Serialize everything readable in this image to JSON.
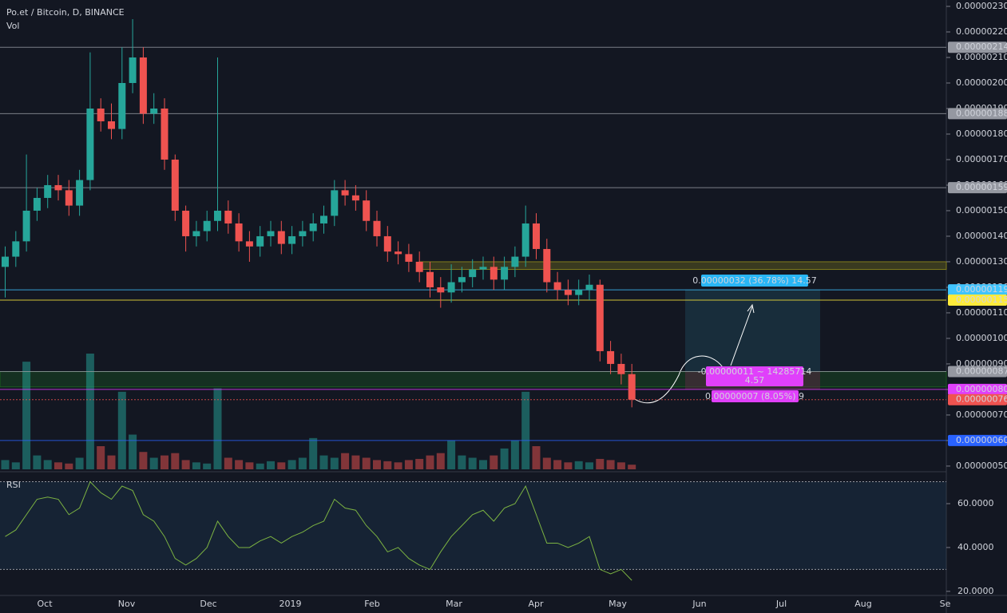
{
  "chart_data": [
    {
      "type": "candlestick",
      "title": "Po.et / Bitcoin, D, BINANCE",
      "up_color": "#26a69a",
      "down_color": "#ef5350",
      "open": [
        1.28e-06,
        1.32e-06,
        1.38e-06,
        1.5e-06,
        1.55e-06,
        1.6e-06,
        1.58e-06,
        1.52e-06,
        1.62e-06,
        1.9e-06,
        1.85e-06,
        1.82e-06,
        2e-06,
        2.1e-06,
        1.88e-06,
        1.9e-06,
        1.7e-06,
        1.5e-06,
        1.4e-06,
        1.42e-06,
        1.46e-06,
        1.5e-06,
        1.45e-06,
        1.38e-06,
        1.36e-06,
        1.4e-06,
        1.42e-06,
        1.37e-06,
        1.4e-06,
        1.42e-06,
        1.45e-06,
        1.48e-06,
        1.58e-06,
        1.56e-06,
        1.54e-06,
        1.46e-06,
        1.4e-06,
        1.34e-06,
        1.33e-06,
        1.3e-06,
        1.26e-06,
        1.2e-06,
        1.18e-06,
        1.22e-06,
        1.24e-06,
        1.27e-06,
        1.28e-06,
        1.23e-06,
        1.28e-06,
        1.32e-06,
        1.45e-06,
        1.35e-06,
        1.22e-06,
        1.19e-06,
        1.17e-06,
        1.19e-06,
        1.21e-06,
        9.5e-07,
        9e-07,
        8.6e-07
      ],
      "high": [
        1.36e-06,
        1.42e-06,
        1.72e-06,
        1.59e-06,
        1.64e-06,
        1.64e-06,
        1.62e-06,
        1.66e-06,
        2.12e-06,
        1.94e-06,
        1.92e-06,
        2.14e-06,
        2.25e-06,
        2.14e-06,
        1.96e-06,
        1.94e-06,
        1.72e-06,
        1.52e-06,
        1.46e-06,
        1.5e-06,
        2.1e-06,
        1.54e-06,
        1.49e-06,
        1.42e-06,
        1.44e-06,
        1.46e-06,
        1.46e-06,
        1.44e-06,
        1.46e-06,
        1.49e-06,
        1.52e-06,
        1.62e-06,
        1.62e-06,
        1.6e-06,
        1.58e-06,
        1.5e-06,
        1.44e-06,
        1.38e-06,
        1.37e-06,
        1.34e-06,
        1.3e-06,
        1.24e-06,
        1.29e-06,
        1.28e-06,
        1.31e-06,
        1.32e-06,
        1.32e-06,
        1.32e-06,
        1.36e-06,
        1.52e-06,
        1.49e-06,
        1.39e-06,
        1.26e-06,
        1.23e-06,
        1.23e-06,
        1.25e-06,
        1.23e-06,
        9.9e-07,
        9.4e-07,
        9e-07
      ],
      "low": [
        1.16e-06,
        1.28e-06,
        1.34e-06,
        1.46e-06,
        1.51e-06,
        1.54e-06,
        1.48e-06,
        1.48e-06,
        1.58e-06,
        1.81e-06,
        1.78e-06,
        1.78e-06,
        1.96e-06,
        1.84e-06,
        1.84e-06,
        1.66e-06,
        1.46e-06,
        1.34e-06,
        1.36e-06,
        1.38e-06,
        1.42e-06,
        1.41e-06,
        1.34e-06,
        1.3e-06,
        1.32e-06,
        1.36e-06,
        1.33e-06,
        1.33e-06,
        1.36e-06,
        1.38e-06,
        1.41e-06,
        1.44e-06,
        1.52e-06,
        1.5e-06,
        1.42e-06,
        1.36e-06,
        1.3e-06,
        1.29e-06,
        1.26e-06,
        1.22e-06,
        1.16e-06,
        1.12e-06,
        1.14e-06,
        1.18e-06,
        1.2e-06,
        1.23e-06,
        1.19e-06,
        1.19e-06,
        1.24e-06,
        1.28e-06,
        1.31e-06,
        1.18e-06,
        1.15e-06,
        1.13e-06,
        1.13e-06,
        1.15e-06,
        9.1e-07,
        8.6e-07,
        8.2e-07,
        7.3e-07
      ],
      "close": [
        1.32e-06,
        1.38e-06,
        1.5e-06,
        1.55e-06,
        1.6e-06,
        1.58e-06,
        1.52e-06,
        1.62e-06,
        1.9e-06,
        1.85e-06,
        1.82e-06,
        2e-06,
        2.1e-06,
        1.88e-06,
        1.9e-06,
        1.7e-06,
        1.5e-06,
        1.4e-06,
        1.42e-06,
        1.46e-06,
        1.5e-06,
        1.45e-06,
        1.38e-06,
        1.36e-06,
        1.4e-06,
        1.42e-06,
        1.37e-06,
        1.4e-06,
        1.42e-06,
        1.45e-06,
        1.48e-06,
        1.58e-06,
        1.56e-06,
        1.54e-06,
        1.46e-06,
        1.4e-06,
        1.34e-06,
        1.33e-06,
        1.3e-06,
        1.26e-06,
        1.2e-06,
        1.18e-06,
        1.22e-06,
        1.24e-06,
        1.27e-06,
        1.28e-06,
        1.23e-06,
        1.28e-06,
        1.32e-06,
        1.45e-06,
        1.35e-06,
        1.22e-06,
        1.19e-06,
        1.17e-06,
        1.19e-06,
        1.21e-06,
        9.5e-07,
        9e-07,
        8.6e-07,
        7.6e-07
      ],
      "ylim": [
        4.81e-07,
        2.325e-06
      ],
      "yticks": [
        {
          "value": 5e-07,
          "label": "0.00000050"
        },
        {
          "value": 6e-07,
          "label": "0.00000060"
        },
        {
          "value": 7e-07,
          "label": "0.00000070"
        },
        {
          "value": 8e-07,
          "label": "0.00000080"
        },
        {
          "value": 9e-07,
          "label": "0.00000090"
        },
        {
          "value": 1e-06,
          "label": "0.00000100"
        },
        {
          "value": 1.1e-06,
          "label": "0.00000110"
        },
        {
          "value": 1.2e-06,
          "label": "0.00000120"
        },
        {
          "value": 1.3e-06,
          "label": "0.00000130"
        },
        {
          "value": 1.4e-06,
          "label": "0.00000140"
        },
        {
          "value": 1.5e-06,
          "label": "0.00000150"
        },
        {
          "value": 1.6e-06,
          "label": "0.00000160"
        },
        {
          "value": 1.7e-06,
          "label": "0.00000170"
        },
        {
          "value": 1.8e-06,
          "label": "0.00000180"
        },
        {
          "value": 1.9e-06,
          "label": "0.00000190"
        },
        {
          "value": 2e-06,
          "label": "0.00000200"
        },
        {
          "value": 2.1e-06,
          "label": "0.00000210"
        },
        {
          "value": 2.2e-06,
          "label": "0.00000220"
        },
        {
          "value": 2.3e-06,
          "label": "0.00000230"
        }
      ],
      "price_lines": [
        {
          "value": 2.14e-06,
          "label": "0.00000214",
          "color": "#9598a1",
          "text_color": "#131722",
          "dash": false
        },
        {
          "value": 1.88e-06,
          "label": "0.00000188",
          "color": "#9598a1",
          "text_color": "#131722",
          "dash": false
        },
        {
          "value": 1.59e-06,
          "label": "0.00000159",
          "color": "#9598a1",
          "text_color": "#131722",
          "dash": false
        },
        {
          "value": 1.19e-06,
          "label": "0.00000119",
          "color": "#40c4ff",
          "text_color": "#131722",
          "dash": false
        },
        {
          "value": 1.15e-06,
          "label": "0.00000115",
          "color": "#ffeb3b",
          "text_color": "#131722",
          "dash": false
        },
        {
          "value": 8.7e-07,
          "label": "0.00000087",
          "color": "#9598a1",
          "text_color": "#131722",
          "dash": false
        },
        {
          "value": 8e-07,
          "label": "0.00000080",
          "color": "#e040fb",
          "text_color": "#ffffff",
          "dash": false
        },
        {
          "value": 7.6e-07,
          "label": "0.00000076",
          "color": "#ef5350",
          "text_color": "#ffffff",
          "dash": true
        },
        {
          "value": 6e-07,
          "label": "0.00000060",
          "color": "#2962ff",
          "text_color": "#ffffff",
          "dash": false
        }
      ],
      "zones": [
        {
          "from": 1.27e-06,
          "to": 1.3e-06,
          "color": "#807b1c"
        },
        {
          "from": 8.1e-07,
          "to": 8.7e-07,
          "color": "#1b5e20"
        }
      ],
      "position": {
        "target": 1.19e-06,
        "entry": 8.7e-07,
        "stop": 8e-07
      },
      "annotations": [
        "0.00000032 (36.78%) 14.57",
        "-0.00000011 ~ 14285714",
        "4.57",
        "0.00000007 (8.05%) 9"
      ],
      "xticks": [
        "Oct",
        "Nov",
        "Dec",
        "2019",
        "Feb",
        "Mar",
        "Apr",
        "May",
        "Jun",
        "Jul",
        "Aug",
        "Se"
      ]
    },
    {
      "type": "bar",
      "name": "Vol",
      "ylim": [
        0,
        100
      ],
      "values": [
        8,
        6,
        93,
        12,
        8,
        6,
        5,
        10,
        100,
        20,
        12,
        67,
        30,
        15,
        10,
        12,
        14,
        8,
        6,
        5,
        70,
        10,
        8,
        6,
        5,
        7,
        6,
        8,
        10,
        27,
        12,
        10,
        14,
        12,
        10,
        8,
        7,
        6,
        8,
        9,
        12,
        14,
        25,
        12,
        10,
        8,
        12,
        18,
        25,
        67,
        20,
        10,
        8,
        6,
        7,
        6,
        9,
        8,
        6,
        4
      ]
    },
    {
      "type": "line",
      "name": "RSI",
      "color": "#7cb342",
      "ylim": [
        18.5,
        74.2
      ],
      "bands": [
        30,
        70
      ],
      "yticks": [
        {
          "value": 60,
          "label": "60.0000"
        },
        {
          "value": 40,
          "label": "40.0000"
        },
        {
          "value": 20,
          "label": "20.0000"
        }
      ],
      "values": [
        45,
        48,
        55,
        62,
        63,
        62,
        55,
        58,
        70,
        65,
        62,
        68,
        66,
        55,
        52,
        45,
        35,
        32,
        35,
        40,
        52,
        45,
        40,
        40,
        43,
        45,
        42,
        45,
        47,
        50,
        52,
        62,
        58,
        57,
        50,
        45,
        38,
        40,
        35,
        32,
        30,
        38,
        45,
        50,
        55,
        57,
        52,
        58,
        60,
        68,
        55,
        42,
        42,
        40,
        42,
        45,
        30,
        28,
        30,
        25
      ]
    }
  ]
}
